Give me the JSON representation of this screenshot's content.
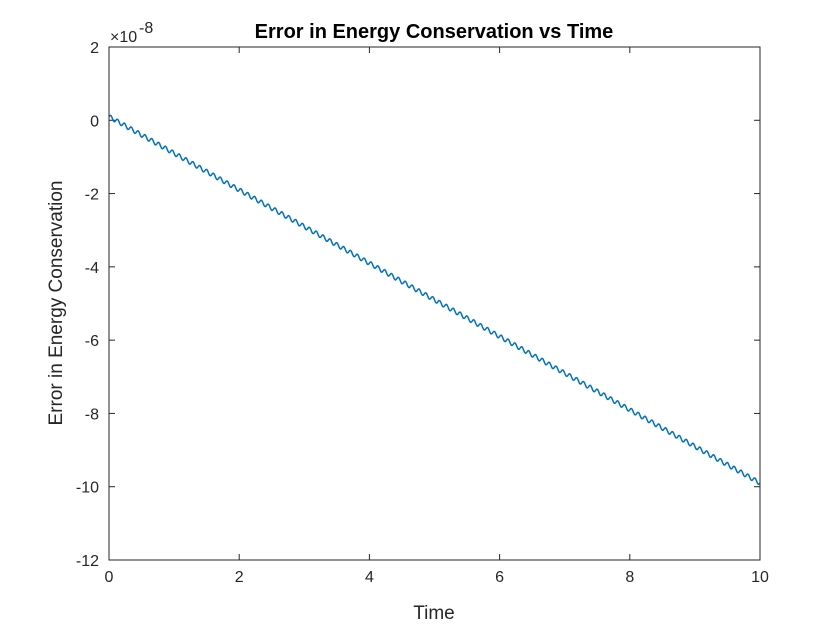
{
  "chart_data": {
    "type": "line",
    "title": "Error in Energy Conservation vs Time",
    "xlabel": "Time",
    "ylabel": "Error in Energy Conservation",
    "y_multiplier_text": "×10",
    "y_multiplier_exponent": "-8",
    "xlim": [
      0,
      10
    ],
    "ylim": [
      -12,
      2
    ],
    "x_ticks": [
      0,
      2,
      4,
      6,
      8,
      10
    ],
    "y_ticks": [
      -12,
      -10,
      -8,
      -6,
      -4,
      -2,
      0,
      2
    ],
    "x_tick_labels": [
      "0",
      "2",
      "4",
      "6",
      "8",
      "10"
    ],
    "y_tick_labels": [
      "-12",
      "-10",
      "-8",
      "-6",
      "-4",
      "-2",
      "0",
      "2"
    ],
    "grid": false,
    "line_color": "#0072BD",
    "series": [
      {
        "x": [
          0,
          1,
          2,
          3,
          4,
          5,
          6,
          7,
          8,
          9,
          10
        ],
        "values": [
          0.1,
          -0.9,
          -1.9,
          -2.9,
          -3.9,
          -4.9,
          -5.9,
          -6.9,
          -7.9,
          -8.9,
          -9.9
        ],
        "ripple": "small periodic oscillation superimposed on a linear decrease"
      }
    ]
  }
}
